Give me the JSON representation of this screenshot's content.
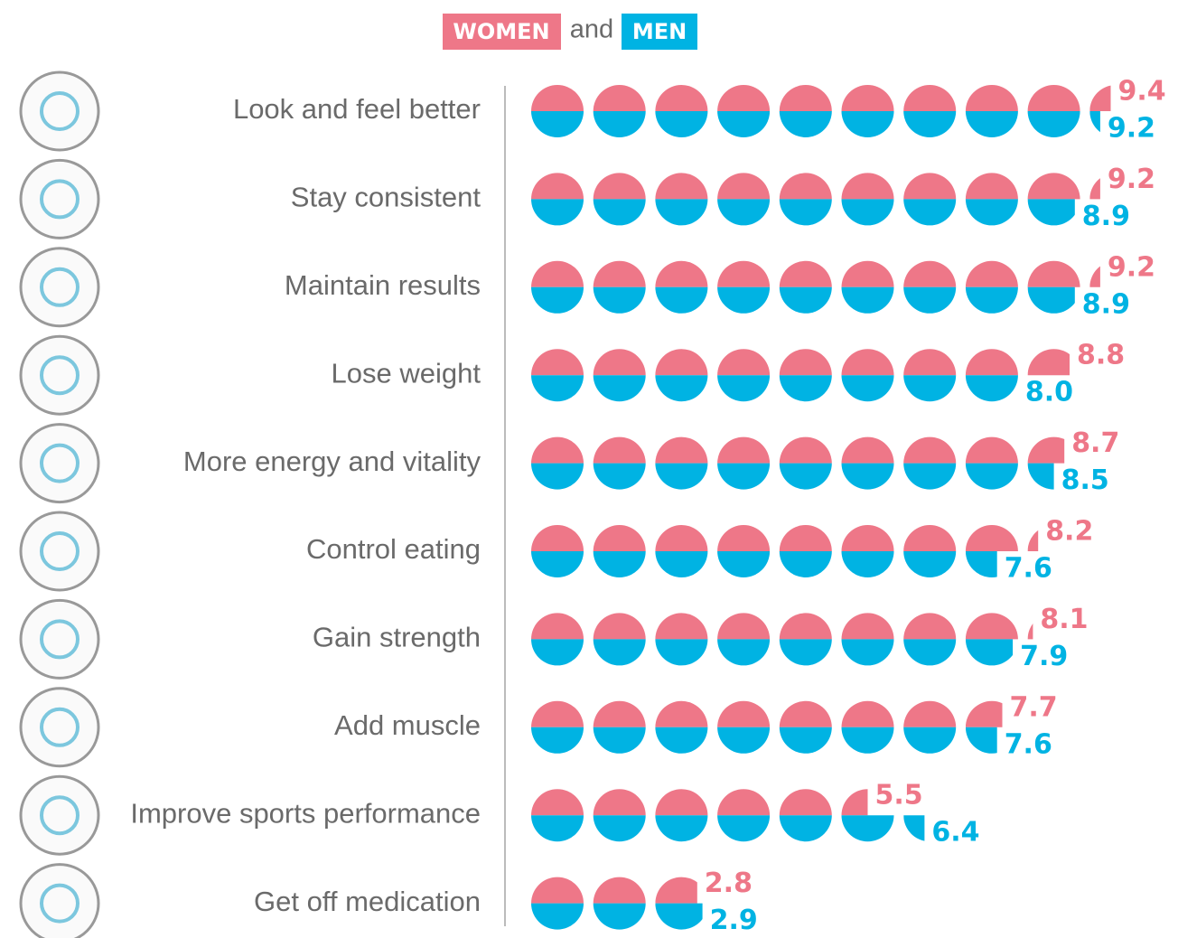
{
  "chart_data": {
    "type": "pictograph",
    "legend_text": "and",
    "categories": [
      "Look and feel better",
      "Stay consistent",
      "Maintain results",
      "Lose weight",
      "More energy and vitality",
      "Control eating",
      "Gain strength",
      "Add muscle",
      "Improve sports performance",
      "Get off medication"
    ],
    "series": [
      {
        "name": "WOMEN",
        "color": "#ee7788",
        "values": [
          9.4,
          9.2,
          9.2,
          8.8,
          8.7,
          8.2,
          8.1,
          7.7,
          5.5,
          2.8
        ],
        "value_labels": [
          "9.4",
          "9.2",
          "9.2",
          "8.8",
          "8.7",
          "8.2",
          "8.1",
          "7.7",
          "5.5",
          "2.8"
        ]
      },
      {
        "name": "MEN",
        "color": "#00b3e3",
        "values": [
          9.2,
          8.9,
          8.9,
          8.0,
          8.5,
          7.6,
          7.9,
          7.6,
          6.4,
          2.9
        ],
        "value_labels": [
          "9.2",
          "8.9",
          "8.9",
          "8.0",
          "8.5",
          "7.6",
          "7.9",
          "7.6",
          "6.4",
          "2.9"
        ]
      }
    ]
  }
}
